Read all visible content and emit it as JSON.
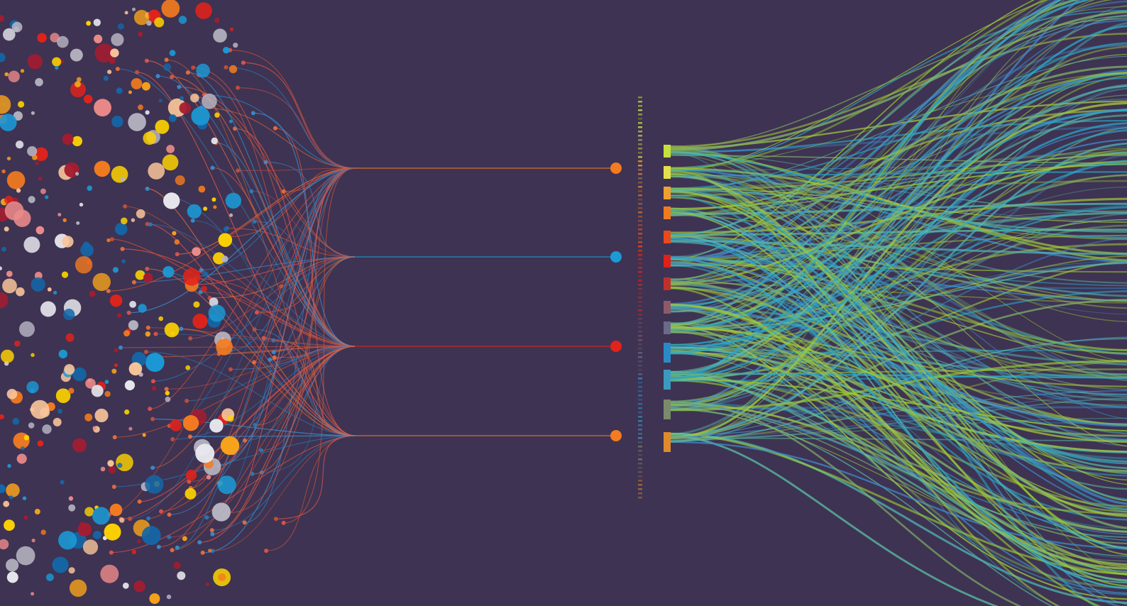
{
  "palette": {
    "background": "#3e3352",
    "dots": [
      "#f47b20",
      "#1b9ad6",
      "#e2231a",
      "#ffd400",
      "#f9c59a",
      "#e8e8ee",
      "#b7b5c2",
      "#a51c30",
      "#ec8a8a",
      "#1467a8",
      "#f7a21b"
    ],
    "strands": [
      "#9acd32",
      "#2aa8c9",
      "#5bc0a8",
      "#7fb069",
      "#3e8ed0",
      "#a4c639",
      "#4fb3b3"
    ],
    "bars": [
      "#c8e03a",
      "#e4e04a",
      "#f0a030",
      "#f07a20",
      "#e84a1a",
      "#e0201a",
      "#c0302a",
      "#8e5a6a",
      "#6a6a8a",
      "#2a8ac8",
      "#3a9ac0",
      "#7a8a6a",
      "#e08a2a"
    ]
  },
  "hubs": [
    {
      "color": "#f47b20"
    },
    {
      "color": "#1b9ad6"
    },
    {
      "color": "#e2231a"
    },
    {
      "color": "#f47b20"
    }
  ]
}
